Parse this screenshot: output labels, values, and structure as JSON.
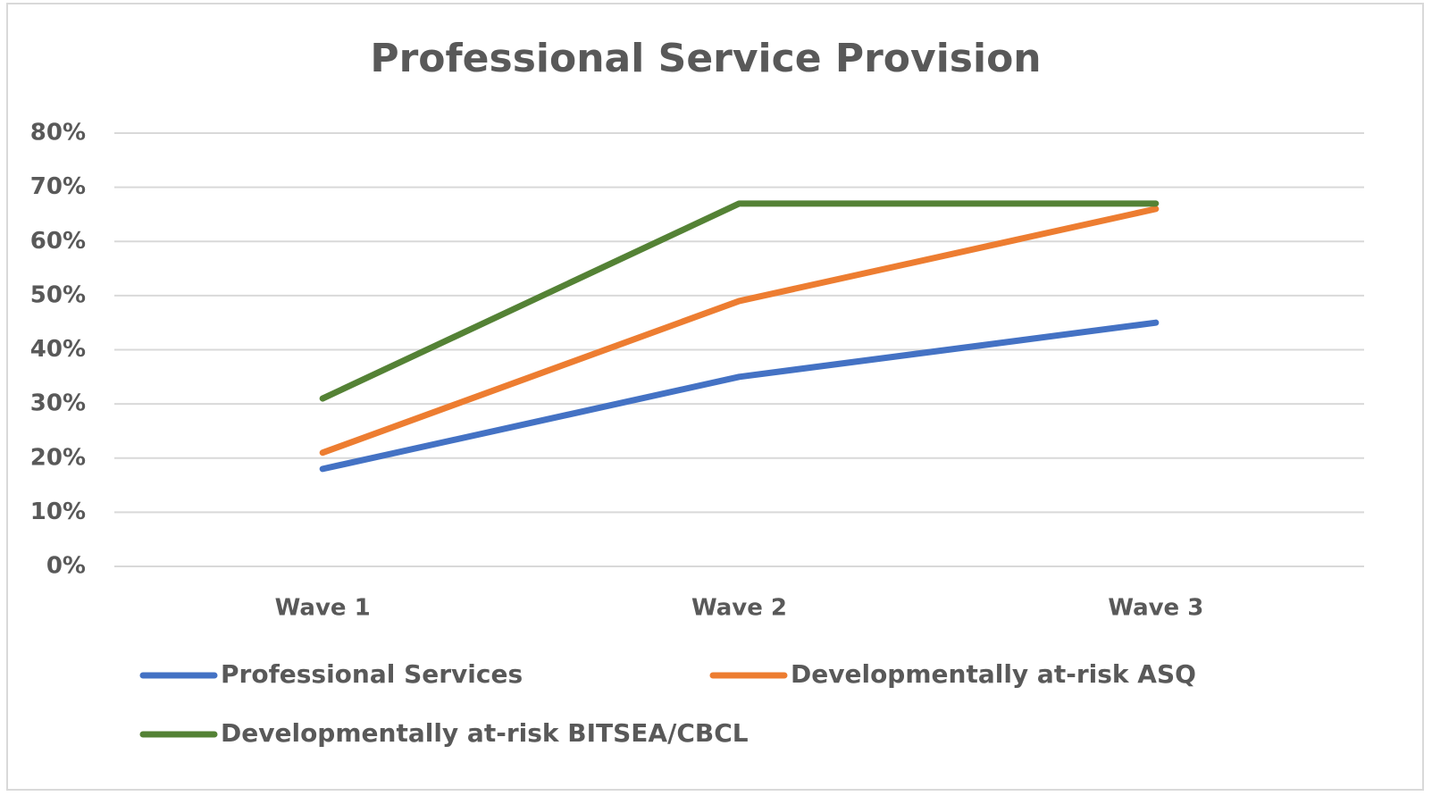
{
  "chart_data": {
    "type": "line",
    "title": "Professional Service Provision",
    "categories": [
      "Wave 1",
      "Wave 2",
      "Wave 3"
    ],
    "series": [
      {
        "name": "Professional Services",
        "color": "#4472c4",
        "values": [
          18,
          35,
          45
        ]
      },
      {
        "name": "Developmentally at-risk ASQ",
        "color": "#ed7d31",
        "values": [
          21,
          49,
          66
        ]
      },
      {
        "name": "Developmentally at-risk BITSEA/CBCL",
        "color": "#548235",
        "values": [
          31,
          67,
          67
        ]
      }
    ],
    "ylim": [
      0,
      80
    ],
    "yticks": [
      {
        "value": 0,
        "label": "0%"
      },
      {
        "value": 10,
        "label": "10%"
      },
      {
        "value": 20,
        "label": "20%"
      },
      {
        "value": 30,
        "label": "30%"
      },
      {
        "value": 40,
        "label": "40%"
      },
      {
        "value": 50,
        "label": "50%"
      },
      {
        "value": 60,
        "label": "60%"
      },
      {
        "value": 70,
        "label": "70%"
      },
      {
        "value": 80,
        "label": "80%"
      }
    ],
    "grid": true,
    "legend": "bottom"
  }
}
